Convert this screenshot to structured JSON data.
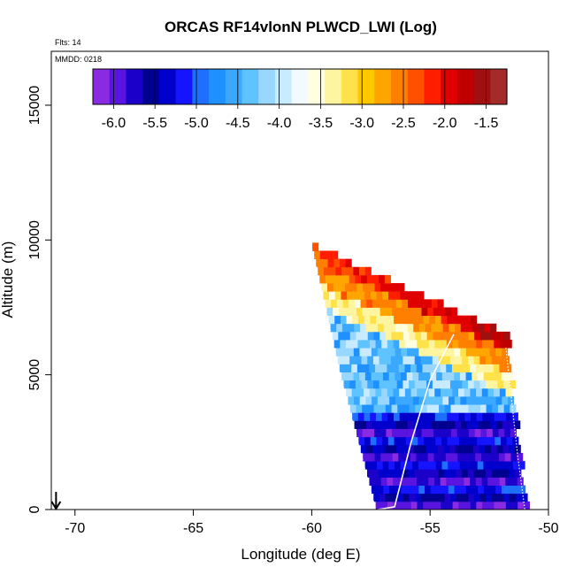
{
  "chart_data": {
    "type": "heatmap",
    "title": "ORCAS RF14vlonN PLWCD_LWI (Log)",
    "xlabel": "Longitude (deg E)",
    "ylabel": "Altitude (m)",
    "xlim": [
      -71,
      -50
    ],
    "ylim": [
      0,
      17000
    ],
    "x_ticks": [
      "-70",
      "-65",
      "-60",
      "-55",
      "-50"
    ],
    "x_tick_values": [
      -70,
      -65,
      -60,
      -55,
      -50
    ],
    "y_ticks": [
      "0",
      "5000",
      "10000",
      "15000"
    ],
    "y_tick_values": [
      0,
      5000,
      10000,
      15000
    ],
    "annotations": {
      "flights": "Flts: 14",
      "date": "MMDD: 0218"
    },
    "colorbar": {
      "range": [
        -6.25,
        -1.25
      ],
      "ticks": [
        "-6.0",
        "-5.5",
        "-5.0",
        "-4.5",
        "-4.0",
        "-3.5",
        "-3.0",
        "-2.5",
        "-2.0",
        "-1.5"
      ],
      "tick_values": [
        -6.0,
        -5.5,
        -5.0,
        -4.5,
        -4.0,
        -3.5,
        -3.0,
        -2.5,
        -2.0,
        -1.5
      ],
      "colors": [
        "#8a2be2",
        "#5a14e0",
        "#1a00c8",
        "#000090",
        "#0000cd",
        "#1414ff",
        "#1e6eff",
        "#1e90ff",
        "#3aa8ff",
        "#5fc3ff",
        "#9ad7ff",
        "#c8ebff",
        "#f0faff",
        "#ffffe0",
        "#fff4a0",
        "#ffe14a",
        "#ffc800",
        "#ffa500",
        "#ff8000",
        "#ff5000",
        "#ff1e00",
        "#e00000",
        "#c00000",
        "#a01010",
        "#a52a2a"
      ]
    },
    "grid": false,
    "flight_track": {
      "color": "#ffffff",
      "points": [
        [
          -57.2,
          0
        ],
        [
          -56.5,
          100
        ],
        [
          -55.8,
          2500
        ],
        [
          -55.0,
          4800
        ],
        [
          -54.0,
          6500
        ]
      ]
    },
    "swath_edges": {
      "left": [
        [
          -60.0,
          9700
        ],
        [
          -58.8,
          5000
        ],
        [
          -57.3,
          0
        ]
      ],
      "right": [
        [
          -51.8,
          6000
        ],
        [
          -51.3,
          2000
        ],
        [
          -51.0,
          0
        ]
      ]
    },
    "grid_cells": {
      "dx": 0.25,
      "dy": 300,
      "region": {
        "top_lon": -59.8,
        "top_alt": 9600,
        "top_right_lon": -51.7,
        "top_right_alt": 6300,
        "bottom_left_lon": -57.3,
        "bottom_right_lon": -51.0
      }
    },
    "marker": {
      "lon": -70.8,
      "alt": 0,
      "symbol": "down-arrow"
    }
  }
}
